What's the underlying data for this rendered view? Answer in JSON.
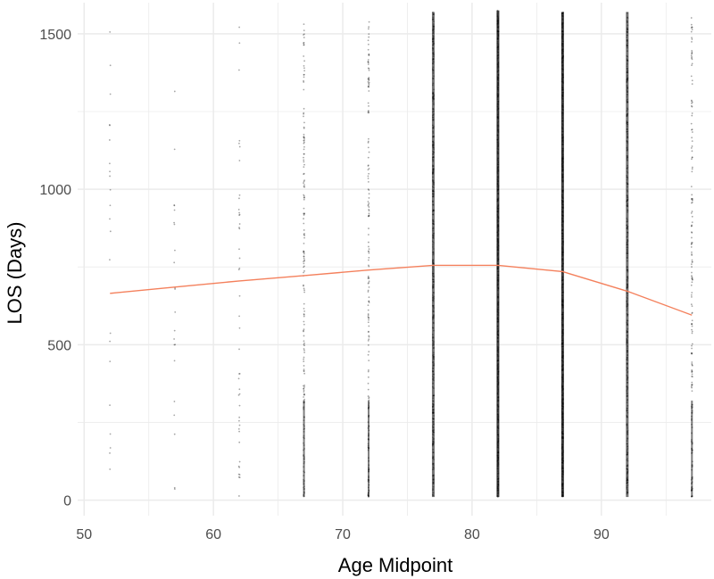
{
  "chart_data": {
    "type": "scatter",
    "xlabel": "Age Midpoint",
    "ylabel": "LOS (Days)",
    "xlim": [
      49.5,
      98.5
    ],
    "ylim": [
      -50,
      1600
    ],
    "x_ticks": [
      50,
      60,
      70,
      80,
      90
    ],
    "x_tick_labels": [
      "50",
      "60",
      "70",
      "80",
      "90"
    ],
    "y_ticks": [
      0,
      500,
      1000,
      1500
    ],
    "y_tick_labels": [
      "0",
      "500",
      "1000",
      "1500"
    ],
    "grid": true,
    "legend": "none",
    "colors": {
      "points": "#000000",
      "trend": "#f4805c",
      "grid": "#ebebeb"
    },
    "scatter_columns": [
      {
        "x": 52,
        "y_min": 10,
        "y_max": 1560,
        "density": "very sparse"
      },
      {
        "x": 57,
        "y_min": 30,
        "y_max": 1490,
        "density": "very sparse"
      },
      {
        "x": 62,
        "y_min": 10,
        "y_max": 1530,
        "density": "sparse"
      },
      {
        "x": 67,
        "y_min": 10,
        "y_max": 1545,
        "density": "medium"
      },
      {
        "x": 72,
        "y_min": 10,
        "y_max": 1560,
        "density": "medium"
      },
      {
        "x": 77,
        "y_min": 10,
        "y_max": 1570,
        "density": "dense"
      },
      {
        "x": 82,
        "y_min": 10,
        "y_max": 1575,
        "density": "very dense"
      },
      {
        "x": 87,
        "y_min": 10,
        "y_max": 1570,
        "density": "very dense"
      },
      {
        "x": 92,
        "y_min": 10,
        "y_max": 1570,
        "density": "dense"
      },
      {
        "x": 97,
        "y_min": 10,
        "y_max": 1560,
        "density": "medium"
      }
    ],
    "trend_line": {
      "x": [
        52,
        57,
        62,
        67,
        72,
        77,
        82,
        87,
        92,
        97
      ],
      "y": [
        665,
        685,
        705,
        722,
        740,
        755,
        755,
        735,
        672,
        595
      ]
    }
  }
}
